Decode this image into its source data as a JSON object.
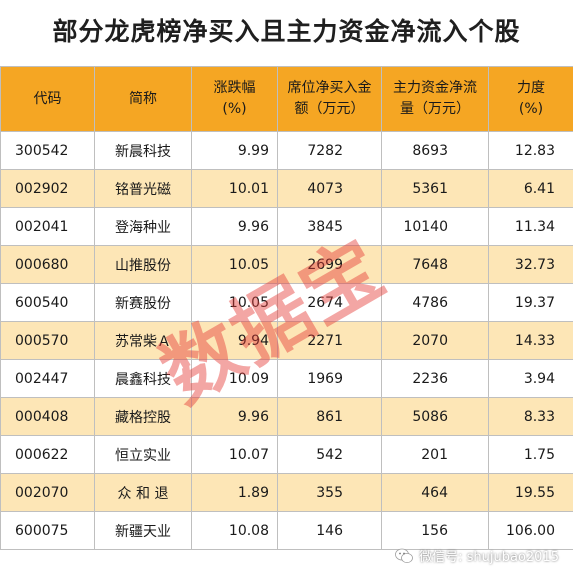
{
  "title": "部分龙虎榜净买入且主力资金净流入个股",
  "headers": {
    "code": "代码",
    "name": "简称",
    "change_1": "涨跌幅",
    "change_2": "(%)",
    "seat_1": "席位净买入金",
    "seat_2": "额（万元）",
    "main_1": "主力资金净流",
    "main_2": "量（万元）",
    "force_1": "力度",
    "force_2": "(%)"
  },
  "rows": [
    {
      "code": "300542",
      "name": "新晨科技",
      "change": "9.99",
      "seat": "7282",
      "main": "8693",
      "force": "12.83"
    },
    {
      "code": "002902",
      "name": "铭普光磁",
      "change": "10.01",
      "seat": "4073",
      "main": "5361",
      "force": "6.41"
    },
    {
      "code": "002041",
      "name": "登海种业",
      "change": "9.96",
      "seat": "3845",
      "main": "10140",
      "force": "11.34"
    },
    {
      "code": "000680",
      "name": "山推股份",
      "change": "10.05",
      "seat": "2699",
      "main": "7648",
      "force": "32.73"
    },
    {
      "code": "600540",
      "name": "新赛股份",
      "change": "10.05",
      "seat": "2674",
      "main": "4786",
      "force": "19.37"
    },
    {
      "code": "000570",
      "name": "苏常柴Ａ",
      "change": "9.94",
      "seat": "2271",
      "main": "2070",
      "force": "14.33"
    },
    {
      "code": "002447",
      "name": "晨鑫科技",
      "change": "10.09",
      "seat": "1969",
      "main": "2236",
      "force": "3.94"
    },
    {
      "code": "000408",
      "name": "藏格控股",
      "change": "9.96",
      "seat": "861",
      "main": "5086",
      "force": "8.33"
    },
    {
      "code": "000622",
      "name": "恒立实业",
      "change": "10.07",
      "seat": "542",
      "main": "201",
      "force": "1.75"
    },
    {
      "code": "002070",
      "name": "众 和 退",
      "change": "1.89",
      "seat": "355",
      "main": "464",
      "force": "19.55"
    },
    {
      "code": "600075",
      "name": "新疆天业",
      "change": "10.08",
      "seat": "146",
      "main": "156",
      "force": "106.00"
    }
  ],
  "watermark": "数据宝",
  "footer": "微信号: shujubao2015",
  "colors": {
    "header": "#f5a623",
    "stripe": "#fde6b6",
    "watermark": "#e53935"
  }
}
